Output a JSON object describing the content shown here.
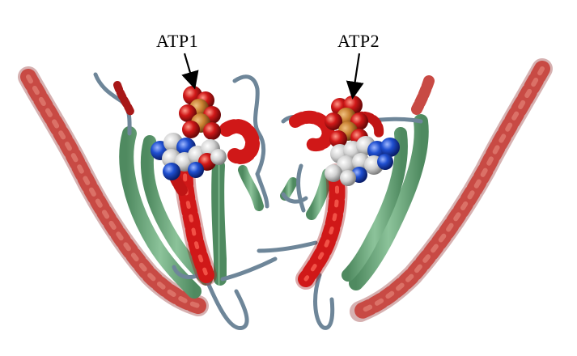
{
  "figure": {
    "description_labels": {
      "atp1": "ATP1",
      "atp2": "ATP2"
    }
  },
  "colors": {
    "background": "#ffffff",
    "helix": "#c81e1e",
    "helix_outer": "#c8504a",
    "sheet": "#6fa57f",
    "coil": "#6e8699",
    "atom_red": "#d01818",
    "atom_blue": "#1f4fd0",
    "atom_white": "#d8d8d8",
    "atom_orange": "#c88030",
    "arrow": "#000000"
  }
}
